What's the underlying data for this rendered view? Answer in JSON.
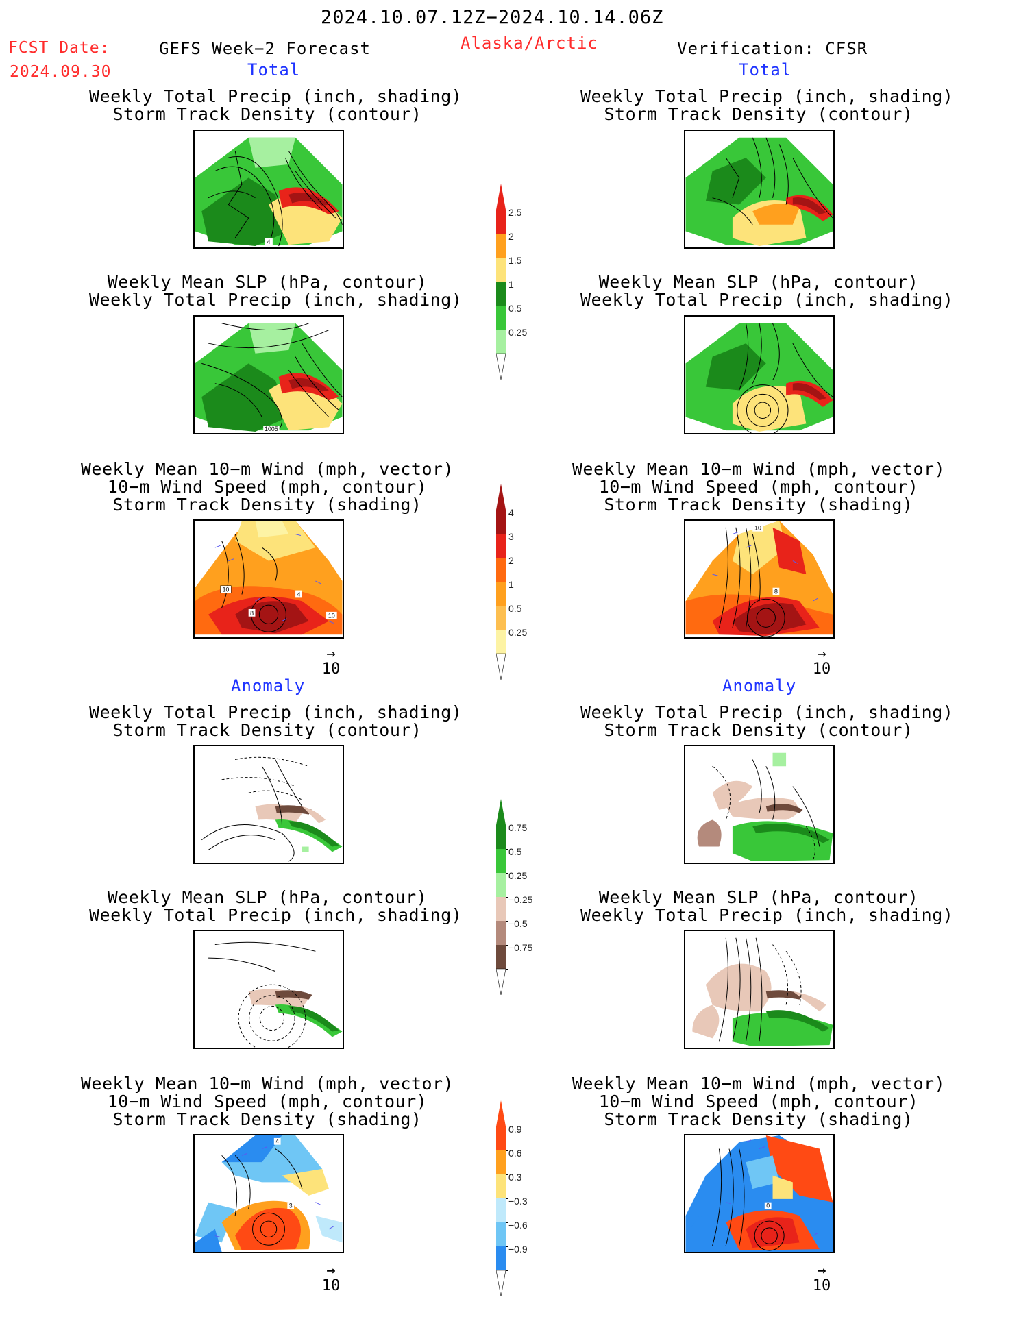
{
  "header": {
    "date_range": "2024.10.07.12Z−2024.10.14.06Z",
    "fcst_label": "FCST Date:",
    "fcst_date": "2024.09.30",
    "model": "GEFS Week−2 Forecast",
    "region": "Alaska/Arctic",
    "verification": "Verification: CFSR"
  },
  "sections": {
    "total_left": "Total",
    "total_right": "Total",
    "anomaly_left": "Anomaly",
    "anomaly_right": "Anomaly"
  },
  "titles": {
    "precip_storm": [
      "Weekly Total Precip (inch, shading)",
      "Storm Track Density (contour)"
    ],
    "slp_precip": [
      "Weekly Mean SLP (hPa, contour)",
      "Weekly Total Precip (inch, shading)"
    ],
    "wind_storm": [
      "Weekly Mean 10−m Wind (mph, vector)",
      "10−m Wind Speed (mph, contour)",
      "Storm Track Density (shading)"
    ]
  },
  "map_labels": {
    "p1_contour": "4",
    "p2_contour": "1005",
    "p3_a": "10",
    "p3_b": "4",
    "p3_c": "8",
    "p3_d": "10",
    "p4_a": "10",
    "p4_b": "8",
    "p9_a": "4",
    "p9_b": "3",
    "p10_a": "0"
  },
  "vector_ref": "10",
  "colorbars": {
    "precip_total": {
      "labels": [
        "2.5",
        "2",
        "1.5",
        "1",
        "0.5",
        "0.25"
      ],
      "colors": [
        "#e8231a",
        "#ffa01e",
        "#fde37a",
        "#1b8a1b",
        "#39c739",
        "#a6f0a0"
      ]
    },
    "storm_total": {
      "labels": [
        "4",
        "3",
        "2",
        "1",
        "0.5",
        "0.25"
      ],
      "colors": [
        "#a41414",
        "#e8231a",
        "#ff6a10",
        "#ffa01e",
        "#fdbf50",
        "#fdf3a4"
      ]
    },
    "precip_anom": {
      "labels": [
        "0.75",
        "0.5",
        "0.25",
        "−0.25",
        "−0.5",
        "−0.75"
      ],
      "colors": [
        "#1b8a1b",
        "#39c739",
        "#a6f0a0",
        "#e8c8b8",
        "#b48a7c",
        "#6e4a3c"
      ]
    },
    "storm_anom": {
      "labels": [
        "0.9",
        "0.6",
        "0.3",
        "−0.3",
        "−0.6",
        "−0.9"
      ],
      "colors": [
        "#ff4a14",
        "#ffa01e",
        "#fde37a",
        "#bfe9fb",
        "#6fc6f5",
        "#2a8cf0"
      ]
    }
  }
}
